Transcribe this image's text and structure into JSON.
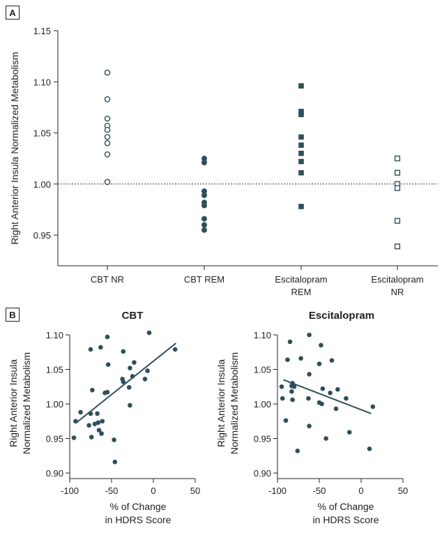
{
  "panel_a": {
    "label": "A",
    "chart_data": {
      "type": "scatter",
      "ylabel": "Right Anterior Insula Normalized Metabolism",
      "ylim": [
        0.92,
        1.15
      ],
      "yticks": [
        0.95,
        1.0,
        1.05,
        1.1,
        1.15
      ],
      "ytick_labels": [
        "0.95",
        "1.00",
        "1.05",
        "1.10",
        "1.15"
      ],
      "reference_line": 1.0,
      "categories": [
        {
          "name": "CBT NR",
          "lines": [
            "CBT NR"
          ],
          "marker": "open-circle",
          "values": [
            1.109,
            1.083,
            1.064,
            1.057,
            1.053,
            1.046,
            1.04,
            1.029,
            1.002
          ]
        },
        {
          "name": "CBT REM",
          "lines": [
            "CBT REM"
          ],
          "marker": "filled-circle",
          "values": [
            1.025,
            1.021,
            0.993,
            0.989,
            0.982,
            0.979,
            0.966,
            0.96,
            0.955
          ]
        },
        {
          "name": "Escitalopram REM",
          "lines": [
            "Escitalopram",
            "REM"
          ],
          "marker": "filled-square",
          "values": [
            1.096,
            1.071,
            1.068,
            1.046,
            1.038,
            1.03,
            1.022,
            1.011,
            0.978
          ]
        },
        {
          "name": "Escitalopram NR",
          "lines": [
            "Escitalopram",
            "NR"
          ],
          "marker": "open-square",
          "values": [
            1.025,
            1.011,
            1.0,
            0.996,
            0.964,
            0.939
          ]
        }
      ]
    }
  },
  "panel_b": {
    "label": "B",
    "chart_data": [
      {
        "type": "scatter",
        "title": "CBT",
        "xlabel": [
          "% of Change",
          "in HDRS Score"
        ],
        "ylabel": [
          "Right Anterior Insula",
          "Normalized Metabolism"
        ],
        "xlim": [
          -100,
          50
        ],
        "ylim": [
          0.9,
          1.1
        ],
        "xticks": [
          -100,
          -50,
          0,
          50
        ],
        "xtick_labels": [
          "-100",
          "-50",
          "0",
          "50"
        ],
        "yticks": [
          0.9,
          0.95,
          1.0,
          1.05,
          1.1
        ],
        "ytick_labels": [
          "0.90",
          "0.95",
          "1.00",
          "1.05",
          "1.10"
        ],
        "fit_line": {
          "x": [
            -93,
            27
          ],
          "y": [
            0.972,
            1.088
          ]
        },
        "points": [
          {
            "x": -5,
            "y": 1.103
          },
          {
            "x": -55,
            "y": 1.097
          },
          {
            "x": -75,
            "y": 1.079
          },
          {
            "x": -63,
            "y": 1.082
          },
          {
            "x": 26,
            "y": 1.079
          },
          {
            "x": -36,
            "y": 1.076
          },
          {
            "x": -23,
            "y": 1.06
          },
          {
            "x": -54,
            "y": 1.057
          },
          {
            "x": -28,
            "y": 1.052
          },
          {
            "x": -7,
            "y": 1.048
          },
          {
            "x": -25,
            "y": 1.04
          },
          {
            "x": -37,
            "y": 1.036
          },
          {
            "x": -10,
            "y": 1.036
          },
          {
            "x": -36,
            "y": 1.032
          },
          {
            "x": -29,
            "y": 1.024
          },
          {
            "x": -73,
            "y": 1.02
          },
          {
            "x": -55,
            "y": 1.017
          },
          {
            "x": -58,
            "y": 1.016
          },
          {
            "x": -28,
            "y": 0.998
          },
          {
            "x": -87,
            "y": 0.988
          },
          {
            "x": -75,
            "y": 0.986
          },
          {
            "x": -67,
            "y": 0.986
          },
          {
            "x": -93,
            "y": 0.975
          },
          {
            "x": -61,
            "y": 0.975
          },
          {
            "x": -66,
            "y": 0.973
          },
          {
            "x": -70,
            "y": 0.971
          },
          {
            "x": -77,
            "y": 0.969
          },
          {
            "x": -65,
            "y": 0.962
          },
          {
            "x": -62,
            "y": 0.957
          },
          {
            "x": -95,
            "y": 0.951
          },
          {
            "x": -74,
            "y": 0.952
          },
          {
            "x": -47,
            "y": 0.948
          },
          {
            "x": -46,
            "y": 0.916
          }
        ]
      },
      {
        "type": "scatter",
        "title": "Escitalopram",
        "xlabel": [
          "% of Change",
          "in HDRS Score"
        ],
        "ylabel": [
          "Right Anterior Insula",
          "Normalized Metabolism"
        ],
        "xlim": [
          -100,
          50
        ],
        "ylim": [
          0.9,
          1.1
        ],
        "xticks": [
          -100,
          -50,
          0,
          50
        ],
        "xtick_labels": [
          "-100",
          "-50",
          "0",
          "50"
        ],
        "yticks": [
          0.9,
          0.95,
          1.0,
          1.05,
          1.1
        ],
        "ytick_labels": [
          "0.90",
          "0.95",
          "1.00",
          "1.05",
          "1.10"
        ],
        "fit_line": {
          "x": [
            -93,
            12
          ],
          "y": [
            1.035,
            0.986
          ]
        },
        "points": [
          {
            "x": -62,
            "y": 1.1
          },
          {
            "x": -85,
            "y": 1.09
          },
          {
            "x": -48,
            "y": 1.085
          },
          {
            "x": -72,
            "y": 1.066
          },
          {
            "x": -88,
            "y": 1.064
          },
          {
            "x": -35,
            "y": 1.063
          },
          {
            "x": -50,
            "y": 1.058
          },
          {
            "x": -62,
            "y": 1.043
          },
          {
            "x": -95,
            "y": 1.025
          },
          {
            "x": -83,
            "y": 1.026
          },
          {
            "x": -80,
            "y": 1.025
          },
          {
            "x": -82,
            "y": 1.03
          },
          {
            "x": -46,
            "y": 1.022
          },
          {
            "x": -37,
            "y": 1.016
          },
          {
            "x": -28,
            "y": 1.021
          },
          {
            "x": -83,
            "y": 1.018
          },
          {
            "x": -94,
            "y": 1.008
          },
          {
            "x": -82,
            "y": 1.006
          },
          {
            "x": -63,
            "y": 1.008
          },
          {
            "x": -18,
            "y": 1.008
          },
          {
            "x": -50,
            "y": 1.002
          },
          {
            "x": -47,
            "y": 1.0
          },
          {
            "x": -30,
            "y": 0.993
          },
          {
            "x": 14,
            "y": 0.996
          },
          {
            "x": -90,
            "y": 0.976
          },
          {
            "x": -62,
            "y": 0.968
          },
          {
            "x": -14,
            "y": 0.959
          },
          {
            "x": -42,
            "y": 0.95
          },
          {
            "x": 10,
            "y": 0.935
          },
          {
            "x": -76,
            "y": 0.932
          }
        ]
      }
    ]
  },
  "colors": {
    "marker": "#2f4f5a",
    "axis": "#222222"
  }
}
